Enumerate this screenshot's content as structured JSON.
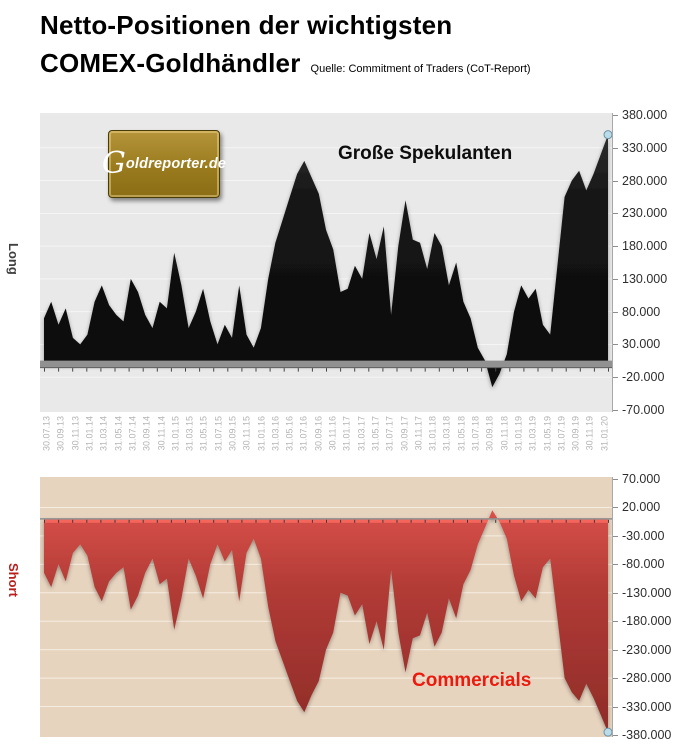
{
  "header": {
    "title_line1": "Netto-Positionen der wichtigsten",
    "title_line2": "COMEX-Goldhändler",
    "source": "Quelle: Commitment of Traders (CoT-Report)"
  },
  "logo": {
    "text": "Goldreporter.de"
  },
  "colors": {
    "speculants_area": "#141414",
    "commercials_area": "#b33a35",
    "commercials_label": "#ec1a0e",
    "long_label": "#3f3f3f",
    "short_label": "#b81f1c",
    "top_background": "#e9e9e9",
    "bottom_background": "#e7d4bf",
    "marker_fill": "#badce9",
    "marker_stroke": "#6d92a5"
  },
  "top_chart": {
    "side_label": "Long",
    "annotation": "Große Spekulanten",
    "y_tick_labels": [
      "380.000",
      "330.000",
      "280.000",
      "230.000",
      "180.000",
      "130.000",
      "80.000",
      "30.000",
      "-20.000",
      "-70.000"
    ]
  },
  "bottom_chart": {
    "side_label": "Short",
    "annotation": "Commercials",
    "y_tick_labels": [
      "70.000",
      "20.000",
      "-30.000",
      "-80.000",
      "-130.000",
      "-180.000",
      "-230.000",
      "-280.000",
      "-330.000",
      "-380.000"
    ]
  },
  "chart_data": [
    {
      "type": "area",
      "name": "Große Spekulanten",
      "position_side": "Long",
      "x_unit": "monthly samples, 30.07.13 to 31.01.20",
      "x_tick_labels": [
        "30.07.13",
        "30.09.13",
        "30.11.13",
        "31.01.14",
        "31.03.14",
        "31.05.14",
        "31.07.14",
        "30.09.14",
        "30.11.14",
        "31.01.15",
        "31.03.15",
        "31.05.15",
        "31.07.15",
        "30.09.15",
        "30.11.15",
        "31.01.16",
        "31.03.16",
        "31.05.16",
        "31.07.16",
        "30.09.16",
        "30.11.16",
        "31.01.17",
        "31.03.17",
        "31.05.17",
        "31.07.17",
        "30.09.17",
        "30.11.17",
        "31.01.18",
        "31.03.18",
        "31.05.18",
        "31.07.18",
        "30.09.18",
        "30.11.18",
        "31.01.19",
        "31.03.19",
        "31.05.19",
        "31.07.19",
        "30.09.19",
        "30.11.19",
        "31.01.20"
      ],
      "ylim": [
        -70000,
        380000
      ],
      "y_tick_step": 50000,
      "values": [
        70000,
        95000,
        60000,
        85000,
        40000,
        30000,
        45000,
        95000,
        120000,
        90000,
        75000,
        65000,
        130000,
        110000,
        75000,
        55000,
        95000,
        85000,
        170000,
        120000,
        55000,
        80000,
        115000,
        65000,
        30000,
        60000,
        40000,
        120000,
        45000,
        25000,
        55000,
        130000,
        185000,
        220000,
        255000,
        290000,
        310000,
        285000,
        260000,
        205000,
        175000,
        110000,
        115000,
        150000,
        130000,
        200000,
        160000,
        210000,
        75000,
        180000,
        250000,
        190000,
        185000,
        145000,
        200000,
        180000,
        120000,
        155000,
        95000,
        70000,
        25000,
        5000,
        -35000,
        -15000,
        15000,
        80000,
        120000,
        100000,
        115000,
        60000,
        45000,
        150000,
        255000,
        280000,
        295000,
        265000,
        290000,
        320000,
        350000
      ],
      "last_value": 350000,
      "last_value_marker": true,
      "grid": true,
      "legend": "none"
    },
    {
      "type": "area",
      "name": "Commercials",
      "position_side": "Short",
      "x_unit": "monthly samples, 30.07.13 to 31.01.20 (labels shown on upper chart only)",
      "ylim": [
        -380000,
        70000
      ],
      "y_tick_step": 50000,
      "values": [
        -95000,
        -120000,
        -80000,
        -110000,
        -60000,
        -45000,
        -65000,
        -120000,
        -145000,
        -110000,
        -95000,
        -85000,
        -160000,
        -135000,
        -95000,
        -70000,
        -115000,
        -105000,
        -195000,
        -140000,
        -70000,
        -100000,
        -140000,
        -80000,
        -45000,
        -75000,
        -55000,
        -145000,
        -60000,
        -35000,
        -70000,
        -155000,
        -215000,
        -250000,
        -285000,
        -320000,
        -340000,
        -310000,
        -285000,
        -230000,
        -200000,
        -130000,
        -135000,
        -170000,
        -150000,
        -220000,
        -180000,
        -230000,
        -90000,
        -200000,
        -270000,
        -210000,
        -205000,
        -165000,
        -225000,
        -200000,
        -140000,
        -175000,
        -115000,
        -90000,
        -45000,
        -15000,
        15000,
        -5000,
        -35000,
        -100000,
        -145000,
        -125000,
        -140000,
        -85000,
        -70000,
        -175000,
        -280000,
        -305000,
        -320000,
        -290000,
        -315000,
        -345000,
        -375000
      ],
      "last_value": -375000,
      "last_value_marker": true,
      "grid": true,
      "legend": "none"
    }
  ]
}
